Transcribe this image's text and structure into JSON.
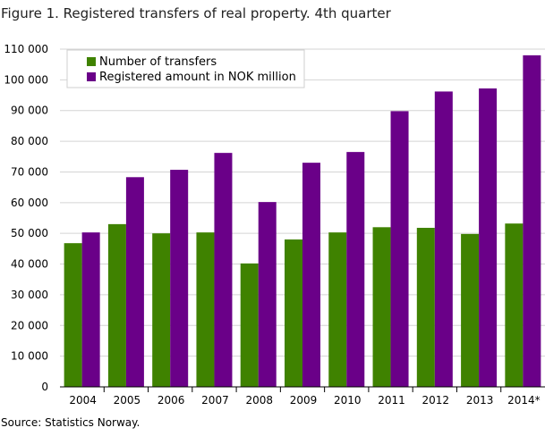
{
  "chart_data": {
    "type": "bar",
    "title": "Figure 1. Registered transfers of real property. 4th quarter",
    "source": "Source: Statistics Norway.",
    "categories": [
      "2004",
      "2005",
      "2006",
      "2007",
      "2008",
      "2009",
      "2010",
      "2011",
      "2012",
      "2013",
      "2014*"
    ],
    "series": [
      {
        "name": "Number of transfers",
        "color": "#3f8200",
        "values": [
          46800,
          53000,
          50000,
          50300,
          40200,
          48000,
          50300,
          52000,
          51800,
          49800,
          53200
        ]
      },
      {
        "name": "Registered amount in NOK million",
        "color": "#6a0088",
        "values": [
          50300,
          68300,
          70700,
          76200,
          60200,
          73000,
          76500,
          89800,
          96200,
          97200,
          108000
        ]
      }
    ],
    "yticks": [
      "0",
      "10 000",
      "20 000",
      "30 000",
      "40 000",
      "50 000",
      "60 000",
      "70 000",
      "80 000",
      "90 000",
      "100 000",
      "110 000"
    ],
    "ylim": [
      0,
      110000
    ],
    "ystep": 10000,
    "xlabel": "",
    "ylabel": "",
    "grid": true,
    "legend_position": "top-left"
  }
}
